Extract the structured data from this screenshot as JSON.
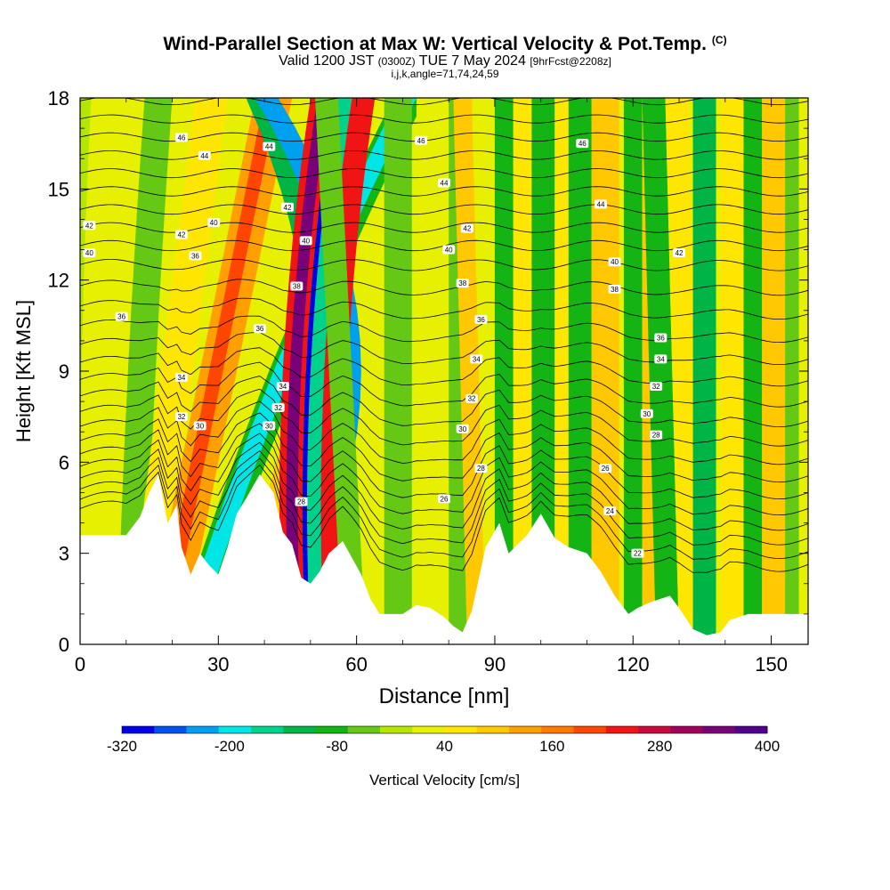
{
  "chart_data": {
    "type": "heatmap",
    "title": "Wind-Parallel Section at Max W: Vertical Velocity & Pot.Temp.",
    "title_mark": "(C)",
    "subtitle_main": "Valid 1200 JST",
    "subtitle_utc": "(0300Z)",
    "subtitle_date": "TUE 7 May 2024",
    "subtitle_fcst": "[9hrFcst@2208z]",
    "subtitle2": "i,j,k,angle=71,74,24,59",
    "xlabel": "Distance [nm]",
    "ylabel": "Height [Kft MSL]",
    "xlim": [
      0,
      158
    ],
    "ylim": [
      0,
      18
    ],
    "xticks": [
      "0",
      "30",
      "60",
      "90",
      "120",
      "150"
    ],
    "yticks": [
      "0",
      "3",
      "6",
      "9",
      "12",
      "15",
      "18"
    ],
    "colorbar": {
      "label": "Vertical Velocity [cm/s]",
      "range": [
        -320,
        400
      ],
      "step": 40,
      "tick_labels": [
        "-320",
        "-200",
        "-80",
        "40",
        "160",
        "280",
        "400"
      ],
      "colors": [
        "#0000e6",
        "#0050f0",
        "#00a0f0",
        "#00e6e6",
        "#00d28c",
        "#00b446",
        "#14b414",
        "#64c814",
        "#b4e600",
        "#e6f000",
        "#ffe600",
        "#ffc800",
        "#ffa000",
        "#ff7800",
        "#ff4600",
        "#f01414",
        "#c80a3c",
        "#a0005a",
        "#780078",
        "#50008c"
      ]
    },
    "terrain_kft": [
      [
        0,
        3.6
      ],
      [
        10,
        3.6
      ],
      [
        13,
        4.2
      ],
      [
        15,
        5.0
      ],
      [
        17,
        5.6
      ],
      [
        19,
        4.0
      ],
      [
        21,
        4.6
      ],
      [
        22,
        3.2
      ],
      [
        24,
        2.3
      ],
      [
        26,
        3.0
      ],
      [
        28,
        2.6
      ],
      [
        30,
        2.3
      ],
      [
        32,
        3.2
      ],
      [
        34,
        4.3
      ],
      [
        36,
        4.8
      ],
      [
        39,
        5.6
      ],
      [
        42,
        5.0
      ],
      [
        44,
        3.7
      ],
      [
        46,
        3.3
      ],
      [
        48,
        2.2
      ],
      [
        50,
        2.0
      ],
      [
        52,
        2.4
      ],
      [
        54,
        3.0
      ],
      [
        57,
        3.4
      ],
      [
        61,
        2.3
      ],
      [
        63,
        1.5
      ],
      [
        65,
        1.0
      ],
      [
        70,
        1.0
      ],
      [
        73,
        1.3
      ],
      [
        76,
        1.2
      ],
      [
        79,
        0.9
      ],
      [
        81,
        0.6
      ],
      [
        83,
        0.4
      ],
      [
        85,
        1.1
      ],
      [
        88,
        3.2
      ],
      [
        91,
        4.0
      ],
      [
        93,
        3.0
      ],
      [
        97,
        3.6
      ],
      [
        100,
        4.3
      ],
      [
        103,
        3.5
      ],
      [
        106,
        3.2
      ],
      [
        110,
        3.0
      ],
      [
        113,
        2.4
      ],
      [
        116,
        1.6
      ],
      [
        119,
        1.0
      ],
      [
        121,
        1.2
      ],
      [
        124,
        1.4
      ],
      [
        128,
        1.6
      ],
      [
        130,
        1.2
      ],
      [
        133,
        0.5
      ],
      [
        136,
        0.3
      ],
      [
        139,
        0.4
      ],
      [
        141,
        0.8
      ],
      [
        145,
        1.0
      ],
      [
        158,
        1.0
      ]
    ],
    "velocity_bands": [
      {
        "x0": 0,
        "x1": 158,
        "h0": -0.2,
        "h1": 0.4,
        "w": 40
      },
      {
        "x0": 8,
        "x1": 14,
        "h0": 0.6,
        "h1": 1.0,
        "w": -40
      },
      {
        "x0": 10,
        "x1": 17,
        "h0": 2.5,
        "h1": 2.5,
        "w": 100
      },
      {
        "x0": 14,
        "x1": 22,
        "h0": 4,
        "h1": 4,
        "w": 160
      },
      {
        "x0": 16,
        "x1": 19,
        "h0": 4,
        "h1": 4,
        "w": 240
      },
      {
        "x0": 20,
        "x1": 27,
        "h0": 6,
        "h1": 8,
        "w": -80
      },
      {
        "x0": 21,
        "x1": 25,
        "h0": 6,
        "h1": 8,
        "w": -200
      },
      {
        "x0": 28,
        "x1": 36,
        "h0": 9,
        "h1": 4,
        "w": 120
      },
      {
        "x0": 36,
        "x1": 41,
        "h0": 9,
        "h1": 0,
        "w": -120
      },
      {
        "x0": 38,
        "x1": 43,
        "h0": 12,
        "h1": 0,
        "w": -240
      },
      {
        "x0": 44,
        "x1": 49,
        "h0": -1,
        "h1": 1,
        "w": 280
      },
      {
        "x0": 45.5,
        "x1": 48,
        "h0": -1,
        "h1": 1,
        "w": 400
      },
      {
        "x0": 49,
        "x1": 52,
        "h0": -1,
        "h1": 1,
        "w": -320
      },
      {
        "x0": 50,
        "x1": 53,
        "h0": -1,
        "h1": 1,
        "w": -160
      },
      {
        "x0": 53,
        "x1": 58,
        "h0": -1,
        "h1": 1,
        "w": 280
      },
      {
        "x0": 57,
        "x1": 62,
        "h0": -1,
        "h1": -1,
        "w": -40
      },
      {
        "x0": 66,
        "x1": 72,
        "h0": 0,
        "h1": 0,
        "w": -40
      },
      {
        "x0": 73,
        "x1": 80,
        "h0": 0,
        "h1": 0,
        "w": 60
      },
      {
        "x0": 80,
        "x1": 85,
        "h0": 0,
        "h1": 0,
        "w": -40
      },
      {
        "x0": 84,
        "x1": 88,
        "h0": -0.5,
        "h1": -0.5,
        "w": 120
      },
      {
        "x0": 90,
        "x1": 94,
        "h0": 0,
        "h1": 0,
        "w": -60
      },
      {
        "x0": 94,
        "x1": 98,
        "h0": 0,
        "h1": 0,
        "w": 80
      },
      {
        "x0": 98,
        "x1": 103,
        "h0": 0,
        "h1": 0,
        "w": -60
      },
      {
        "x0": 103,
        "x1": 107,
        "h0": 0,
        "h1": 0,
        "w": 80
      },
      {
        "x0": 106,
        "x1": 111,
        "h0": 0,
        "h1": 0,
        "w": -80
      },
      {
        "x0": 111,
        "x1": 117,
        "h0": 0,
        "h1": 0,
        "w": 120
      },
      {
        "x0": 118,
        "x1": 122,
        "h0": 0,
        "h1": 0,
        "w": -60
      },
      {
        "x0": 122,
        "x1": 126,
        "h0": 0,
        "h1": 0,
        "w": 120
      },
      {
        "x0": 125,
        "x1": 130,
        "h0": -0.5,
        "h1": -0.5,
        "w": -80
      },
      {
        "x0": 130,
        "x1": 135,
        "h0": -0.5,
        "h1": -0.5,
        "w": 80
      },
      {
        "x0": 133,
        "x1": 138,
        "h0": 0,
        "h1": 0,
        "w": -120
      },
      {
        "x0": 139,
        "x1": 144,
        "h0": 0,
        "h1": 0,
        "w": 80
      },
      {
        "x0": 144,
        "x1": 148,
        "h0": 0,
        "h1": 0,
        "w": -80
      },
      {
        "x0": 148,
        "x1": 153,
        "h0": 0,
        "h1": 0,
        "w": 120
      },
      {
        "x0": 153,
        "x1": 156,
        "h0": 0,
        "h1": 0,
        "w": -40
      }
    ],
    "theta_contours": {
      "min": 22,
      "max": 48,
      "interval": 1
    },
    "theta_labels": [
      {
        "x": 2,
        "y": 13.8,
        "text": "42"
      },
      {
        "x": 2,
        "y": 12.9,
        "text": "40"
      },
      {
        "x": 9,
        "y": 10.8,
        "text": "36"
      },
      {
        "x": 22,
        "y": 16.7,
        "text": "46"
      },
      {
        "x": 27,
        "y": 16.1,
        "text": "44"
      },
      {
        "x": 22,
        "y": 13.5,
        "text": "42"
      },
      {
        "x": 29,
        "y": 13.9,
        "text": "40"
      },
      {
        "x": 25,
        "y": 12.8,
        "text": "36"
      },
      {
        "x": 22,
        "y": 8.8,
        "text": "34"
      },
      {
        "x": 22,
        "y": 7.5,
        "text": "32"
      },
      {
        "x": 26,
        "y": 7.2,
        "text": "30"
      },
      {
        "x": 41,
        "y": 16.4,
        "text": "44"
      },
      {
        "x": 45,
        "y": 14.4,
        "text": "42"
      },
      {
        "x": 49,
        "y": 13.3,
        "text": "40"
      },
      {
        "x": 47,
        "y": 11.8,
        "text": "38"
      },
      {
        "x": 39,
        "y": 10.4,
        "text": "36"
      },
      {
        "x": 44,
        "y": 8.5,
        "text": "34"
      },
      {
        "x": 43,
        "y": 7.8,
        "text": "32"
      },
      {
        "x": 41,
        "y": 7.2,
        "text": "30"
      },
      {
        "x": 48,
        "y": 4.7,
        "text": "28"
      },
      {
        "x": 74,
        "y": 16.6,
        "text": "46"
      },
      {
        "x": 79,
        "y": 15.2,
        "text": "44"
      },
      {
        "x": 84,
        "y": 13.7,
        "text": "42"
      },
      {
        "x": 80,
        "y": 13.0,
        "text": "40"
      },
      {
        "x": 83,
        "y": 11.9,
        "text": "38"
      },
      {
        "x": 87,
        "y": 10.7,
        "text": "36"
      },
      {
        "x": 86,
        "y": 9.4,
        "text": "34"
      },
      {
        "x": 85,
        "y": 8.1,
        "text": "32"
      },
      {
        "x": 83,
        "y": 7.1,
        "text": "30"
      },
      {
        "x": 87,
        "y": 5.8,
        "text": "28"
      },
      {
        "x": 79,
        "y": 4.8,
        "text": "26"
      },
      {
        "x": 109,
        "y": 16.5,
        "text": "46"
      },
      {
        "x": 113,
        "y": 14.5,
        "text": "44"
      },
      {
        "x": 130,
        "y": 12.9,
        "text": "42"
      },
      {
        "x": 116,
        "y": 12.6,
        "text": "40"
      },
      {
        "x": 116,
        "y": 11.7,
        "text": "38"
      },
      {
        "x": 126,
        "y": 10.1,
        "text": "36"
      },
      {
        "x": 126,
        "y": 9.4,
        "text": "34"
      },
      {
        "x": 125,
        "y": 8.5,
        "text": "32"
      },
      {
        "x": 123,
        "y": 7.6,
        "text": "30"
      },
      {
        "x": 125,
        "y": 6.9,
        "text": "28"
      },
      {
        "x": 114,
        "y": 5.8,
        "text": "26"
      },
      {
        "x": 115,
        "y": 4.4,
        "text": "24"
      },
      {
        "x": 121,
        "y": 3.0,
        "text": "22"
      }
    ]
  }
}
